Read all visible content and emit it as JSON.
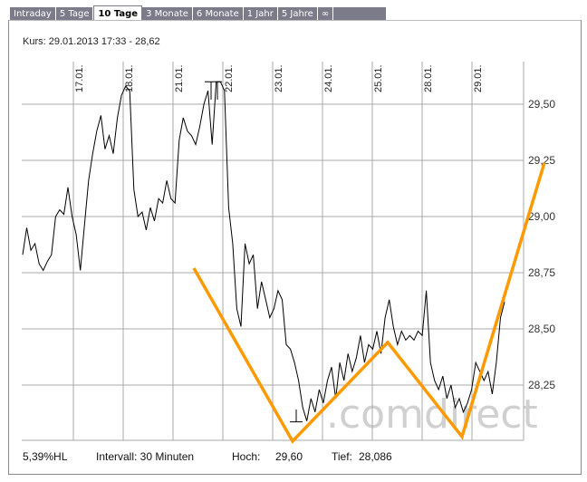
{
  "tabs": [
    {
      "label": "Intraday",
      "active": false
    },
    {
      "label": "5 Tage",
      "active": false
    },
    {
      "label": "10 Tage",
      "active": true
    },
    {
      "label": "3 Monate",
      "active": false
    },
    {
      "label": "6 Monate",
      "active": false
    },
    {
      "label": "1 Jahr",
      "active": false
    },
    {
      "label": "5 Jahre",
      "active": false
    },
    {
      "label": "∞",
      "active": false
    }
  ],
  "kurs": "Kurs: 29.01.2013 17:33 - 28,62",
  "footer": {
    "range_pct": "5,39%HL",
    "interval": "Intervall: 30 Minuten",
    "high_label": "Hoch:",
    "high_value": "29,60",
    "low_label": "Tief:",
    "low_value": "28,086"
  },
  "watermark": ".comdirect",
  "colors": {
    "line": "#000000",
    "annotation": "#ff9900",
    "grid": "#aaaaaa",
    "tabs": "#7b7b8a"
  },
  "chart_data": {
    "type": "line",
    "title": "",
    "xlabel": "",
    "ylabel": "",
    "x_tick_labels": [
      "17.01.",
      "18.01.",
      "21.01.",
      "22.01.",
      "23.01.",
      "24.01.",
      "25.01.",
      "28.01.",
      "29.01."
    ],
    "y_tick_labels": [
      "29,50",
      "29,25",
      "29,00",
      "28,75",
      "28,50",
      "28,25"
    ],
    "y_ticks": [
      29.5,
      29.25,
      29.0,
      28.75,
      28.5,
      28.25
    ],
    "ylim": [
      28.0,
      29.65
    ],
    "grid": true,
    "y_axis_side": "right",
    "interval": "30 Minuten",
    "high": 29.6,
    "low": 28.086,
    "values": [
      28.83,
      28.95,
      28.85,
      28.88,
      28.79,
      28.76,
      28.8,
      28.83,
      29.0,
      29.03,
      29.01,
      29.13,
      29.0,
      28.92,
      28.76,
      28.96,
      29.16,
      29.28,
      29.38,
      29.45,
      29.3,
      29.36,
      29.28,
      29.44,
      29.54,
      29.58,
      29.56,
      29.12,
      29.0,
      29.02,
      28.94,
      29.04,
      28.98,
      29.08,
      29.06,
      29.16,
      29.08,
      29.06,
      29.34,
      29.44,
      29.38,
      29.36,
      29.32,
      29.4,
      29.5,
      29.56,
      29.32,
      29.6,
      29.6,
      29.56,
      29.04,
      28.88,
      28.59,
      28.51,
      28.88,
      28.79,
      28.83,
      28.59,
      28.71,
      28.63,
      28.55,
      28.59,
      28.67,
      28.63,
      28.43,
      28.41,
      28.35,
      28.27,
      28.15,
      28.09,
      28.19,
      28.13,
      28.23,
      28.17,
      28.27,
      28.33,
      28.19,
      28.35,
      28.27,
      28.39,
      28.31,
      28.37,
      28.47,
      28.35,
      28.43,
      28.41,
      28.49,
      28.39,
      28.55,
      28.63,
      28.51,
      28.43,
      28.49,
      28.45,
      28.47,
      28.45,
      28.49,
      28.47,
      28.67,
      28.35,
      28.27,
      28.23,
      28.29,
      28.19,
      28.25,
      28.15,
      28.19,
      28.13,
      28.17,
      28.23,
      28.35,
      28.31,
      28.27,
      28.31,
      28.21,
      28.35,
      28.55,
      28.62
    ],
    "annotation_polyline_prices": [
      28.77,
      28.0,
      28.44,
      28.02,
      29.24
    ]
  }
}
